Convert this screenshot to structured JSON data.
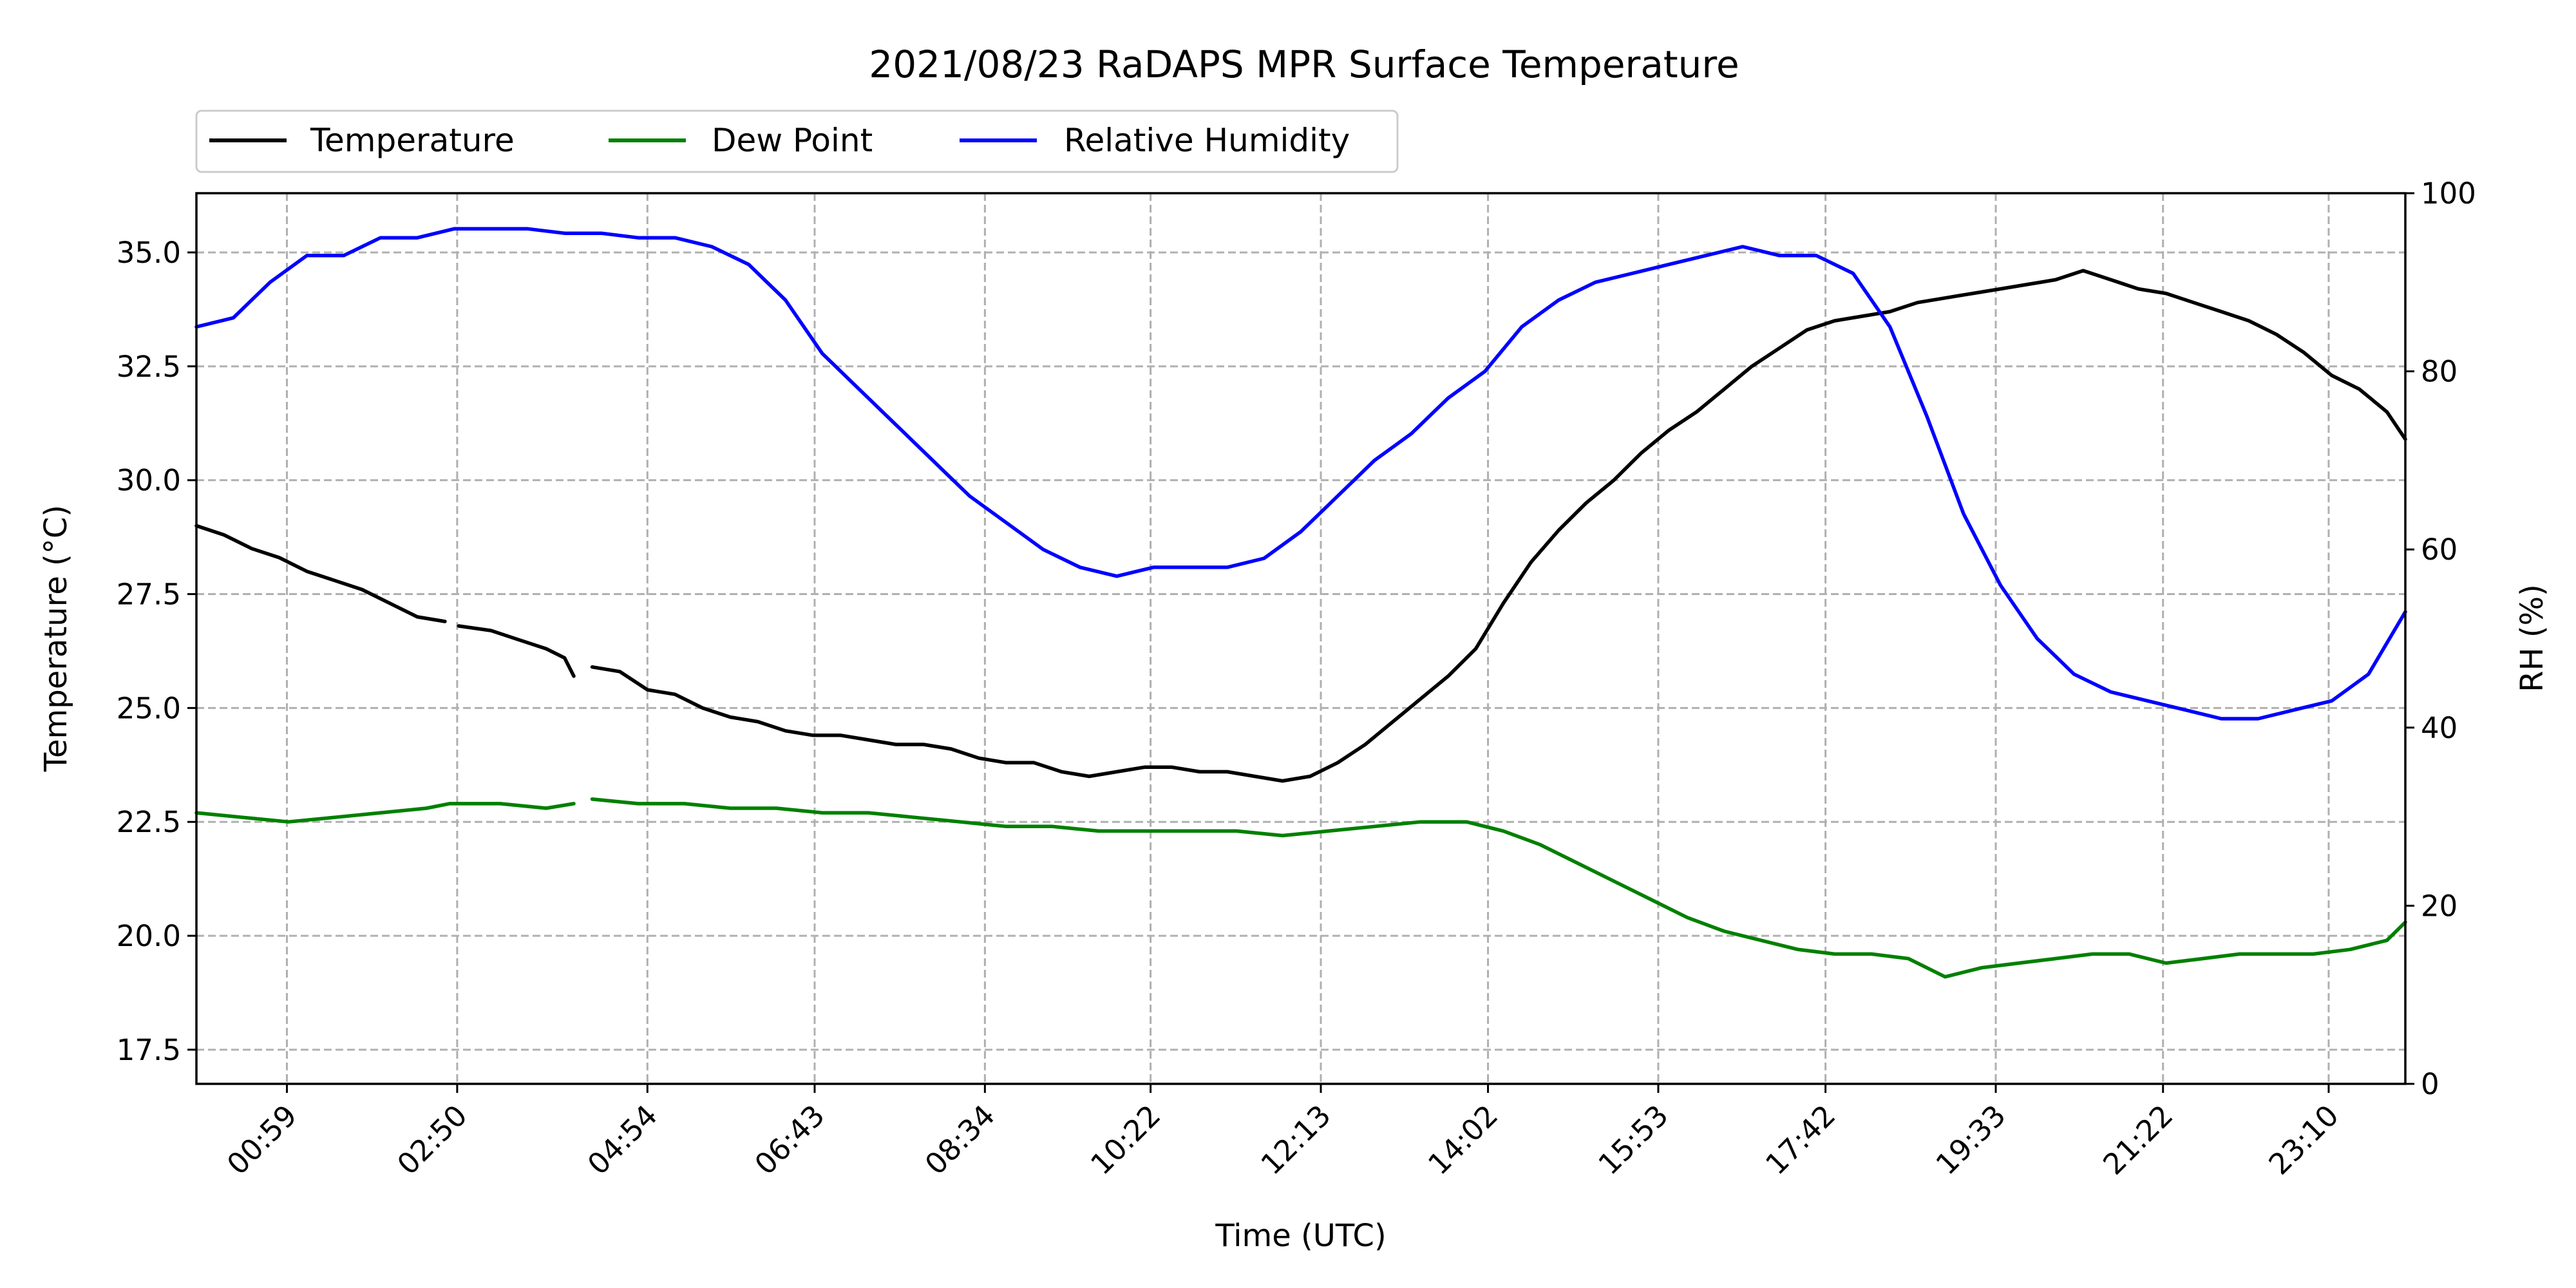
{
  "chart_data": {
    "type": "line",
    "title": "2021/08/23 RaDAPS MPR Surface Temperature",
    "xlabel": "Time (UTC)",
    "ylabel_left": "Temperature ($^\\circ$C)",
    "ylabel_left_display": "Temperature (°C)",
    "ylabel_right": "RH (%)",
    "xlim_hours": [
      0,
      24
    ],
    "x_ticks": [
      {
        "label": "00:59",
        "hour": 0.983
      },
      {
        "label": "02:50",
        "hour": 2.833
      },
      {
        "label": "04:54",
        "hour": 4.9
      },
      {
        "label": "06:43",
        "hour": 6.717
      },
      {
        "label": "08:34",
        "hour": 8.567
      },
      {
        "label": "10:22",
        "hour": 10.367
      },
      {
        "label": "12:13",
        "hour": 12.217
      },
      {
        "label": "14:02",
        "hour": 14.033
      },
      {
        "label": "15:53",
        "hour": 15.883
      },
      {
        "label": "17:42",
        "hour": 17.7
      },
      {
        "label": "19:33",
        "hour": 19.55
      },
      {
        "label": "21:22",
        "hour": 21.367
      },
      {
        "label": "23:10",
        "hour": 23.167
      }
    ],
    "ylim_left": [
      16.75,
      36.3
    ],
    "yticks_left": [
      "17.5",
      "20.0",
      "22.5",
      "25.0",
      "27.5",
      "30.0",
      "32.5",
      "35.0"
    ],
    "ylim_right": [
      0,
      100
    ],
    "yticks_right": [
      "0",
      "20",
      "40",
      "60",
      "80",
      "100"
    ],
    "grid": true,
    "legend_placement": "above-top-left",
    "series": [
      {
        "name": "Temperature",
        "axis": "left",
        "color": "#000000",
        "points": [
          [
            0,
            29
          ],
          [
            0.3,
            28.8
          ],
          [
            0.6,
            28.5
          ],
          [
            0.9,
            28.3
          ],
          [
            1.2,
            28
          ],
          [
            1.5,
            27.8
          ],
          [
            1.8,
            27.6
          ],
          [
            2.1,
            27.3
          ],
          [
            2.4,
            27
          ],
          [
            2.7,
            26.9
          ],
          [
            2.75,
            null
          ],
          [
            2.85,
            26.8
          ],
          [
            3.2,
            26.7
          ],
          [
            3.5,
            26.5
          ],
          [
            3.8,
            26.3
          ],
          [
            4.0,
            26.1
          ],
          [
            4.1,
            25.7
          ],
          [
            4.2,
            null
          ],
          [
            4.3,
            25.9
          ],
          [
            4.6,
            25.8
          ],
          [
            4.9,
            25.4
          ],
          [
            5.2,
            25.3
          ],
          [
            5.5,
            25
          ],
          [
            5.8,
            24.8
          ],
          [
            6.1,
            24.7
          ],
          [
            6.4,
            24.5
          ],
          [
            6.7,
            24.4
          ],
          [
            7.0,
            24.4
          ],
          [
            7.3,
            24.3
          ],
          [
            7.6,
            24.2
          ],
          [
            7.9,
            24.2
          ],
          [
            8.2,
            24.1
          ],
          [
            8.5,
            23.9
          ],
          [
            8.8,
            23.8
          ],
          [
            9.1,
            23.8
          ],
          [
            9.4,
            23.6
          ],
          [
            9.7,
            23.5
          ],
          [
            10.0,
            23.6
          ],
          [
            10.3,
            23.7
          ],
          [
            10.6,
            23.7
          ],
          [
            10.9,
            23.6
          ],
          [
            11.2,
            23.6
          ],
          [
            11.5,
            23.5
          ],
          [
            11.8,
            23.4
          ],
          [
            12.1,
            23.5
          ],
          [
            12.4,
            23.8
          ],
          [
            12.7,
            24.2
          ],
          [
            13.0,
            24.7
          ],
          [
            13.3,
            25.2
          ],
          [
            13.6,
            25.7
          ],
          [
            13.9,
            26.3
          ],
          [
            14.2,
            27.3
          ],
          [
            14.5,
            28.2
          ],
          [
            14.8,
            28.9
          ],
          [
            15.1,
            29.5
          ],
          [
            15.4,
            30
          ],
          [
            15.7,
            30.6
          ],
          [
            16.0,
            31.1
          ],
          [
            16.3,
            31.5
          ],
          [
            16.6,
            32
          ],
          [
            16.9,
            32.5
          ],
          [
            17.2,
            32.9
          ],
          [
            17.5,
            33.3
          ],
          [
            17.8,
            33.5
          ],
          [
            18.1,
            33.6
          ],
          [
            18.4,
            33.7
          ],
          [
            18.7,
            33.9
          ],
          [
            19.0,
            34
          ],
          [
            19.3,
            34.1
          ],
          [
            19.6,
            34.2
          ],
          [
            19.9,
            34.3
          ],
          [
            20.2,
            34.4
          ],
          [
            20.5,
            34.6
          ],
          [
            20.8,
            34.4
          ],
          [
            21.1,
            34.2
          ],
          [
            21.4,
            34.1
          ],
          [
            21.7,
            33.9
          ],
          [
            22.0,
            33.7
          ],
          [
            22.3,
            33.5
          ],
          [
            22.6,
            33.2
          ],
          [
            22.9,
            32.8
          ],
          [
            23.2,
            32.3
          ],
          [
            23.5,
            32
          ],
          [
            23.8,
            31.5
          ],
          [
            24.0,
            30.9
          ]
        ]
      },
      {
        "name": "Dew Point",
        "axis": "left",
        "color": "#008000",
        "points": [
          [
            0,
            22.7
          ],
          [
            0.5,
            22.6
          ],
          [
            1.0,
            22.5
          ],
          [
            1.5,
            22.6
          ],
          [
            2.0,
            22.7
          ],
          [
            2.5,
            22.8
          ],
          [
            2.75,
            22.9
          ],
          [
            2.85,
            22.9
          ],
          [
            3.3,
            22.9
          ],
          [
            3.8,
            22.8
          ],
          [
            4.1,
            22.9
          ],
          [
            4.2,
            null
          ],
          [
            4.3,
            23.0
          ],
          [
            4.8,
            22.9
          ],
          [
            5.3,
            22.9
          ],
          [
            5.8,
            22.8
          ],
          [
            6.3,
            22.8
          ],
          [
            6.8,
            22.7
          ],
          [
            7.3,
            22.7
          ],
          [
            7.8,
            22.6
          ],
          [
            8.3,
            22.5
          ],
          [
            8.8,
            22.4
          ],
          [
            9.3,
            22.4
          ],
          [
            9.8,
            22.3
          ],
          [
            10.3,
            22.3
          ],
          [
            10.8,
            22.3
          ],
          [
            11.3,
            22.3
          ],
          [
            11.8,
            22.2
          ],
          [
            12.3,
            22.3
          ],
          [
            12.8,
            22.4
          ],
          [
            13.3,
            22.5
          ],
          [
            13.8,
            22.5
          ],
          [
            14.2,
            22.3
          ],
          [
            14.6,
            22
          ],
          [
            15.0,
            21.6
          ],
          [
            15.4,
            21.2
          ],
          [
            15.8,
            20.8
          ],
          [
            16.2,
            20.4
          ],
          [
            16.6,
            20.1
          ],
          [
            17.0,
            19.9
          ],
          [
            17.4,
            19.7
          ],
          [
            17.8,
            19.6
          ],
          [
            18.2,
            19.6
          ],
          [
            18.6,
            19.5
          ],
          [
            19.0,
            19.1
          ],
          [
            19.4,
            19.3
          ],
          [
            19.8,
            19.4
          ],
          [
            20.2,
            19.5
          ],
          [
            20.6,
            19.6
          ],
          [
            21.0,
            19.6
          ],
          [
            21.4,
            19.4
          ],
          [
            21.8,
            19.5
          ],
          [
            22.2,
            19.6
          ],
          [
            22.6,
            19.6
          ],
          [
            23.0,
            19.6
          ],
          [
            23.4,
            19.7
          ],
          [
            23.8,
            19.9
          ],
          [
            24.0,
            20.3
          ]
        ]
      },
      {
        "name": "Relative Humidity",
        "axis": "right",
        "color": "#0000ff",
        "points": [
          [
            0,
            85
          ],
          [
            0.4,
            86
          ],
          [
            0.8,
            90
          ],
          [
            1.2,
            93
          ],
          [
            1.6,
            93
          ],
          [
            2.0,
            95
          ],
          [
            2.4,
            95
          ],
          [
            2.8,
            96
          ],
          [
            3.2,
            96
          ],
          [
            3.6,
            96
          ],
          [
            4.0,
            95.5
          ],
          [
            4.4,
            95.5
          ],
          [
            4.8,
            95
          ],
          [
            5.2,
            95
          ],
          [
            5.6,
            94
          ],
          [
            6.0,
            92
          ],
          [
            6.4,
            88
          ],
          [
            6.8,
            82
          ],
          [
            7.2,
            78
          ],
          [
            7.6,
            74
          ],
          [
            8.0,
            70
          ],
          [
            8.4,
            66
          ],
          [
            8.8,
            63
          ],
          [
            9.2,
            60
          ],
          [
            9.6,
            58
          ],
          [
            10.0,
            57
          ],
          [
            10.4,
            58
          ],
          [
            10.8,
            58
          ],
          [
            11.2,
            58
          ],
          [
            11.6,
            59
          ],
          [
            12.0,
            62
          ],
          [
            12.4,
            66
          ],
          [
            12.8,
            70
          ],
          [
            13.2,
            73
          ],
          [
            13.6,
            77
          ],
          [
            14.0,
            80
          ],
          [
            14.4,
            85
          ],
          [
            14.8,
            88
          ],
          [
            15.2,
            90
          ],
          [
            15.6,
            91
          ],
          [
            16.0,
            92
          ],
          [
            16.4,
            93
          ],
          [
            16.8,
            94
          ],
          [
            17.2,
            93
          ],
          [
            17.6,
            93
          ],
          [
            18.0,
            91
          ],
          [
            18.4,
            85
          ],
          [
            18.8,
            75
          ],
          [
            19.2,
            64
          ],
          [
            19.6,
            56
          ],
          [
            20.0,
            50
          ],
          [
            20.4,
            46
          ],
          [
            20.8,
            44
          ],
          [
            21.2,
            43
          ],
          [
            21.6,
            42
          ],
          [
            22.0,
            41
          ],
          [
            22.4,
            41
          ],
          [
            22.8,
            42
          ],
          [
            23.2,
            43
          ],
          [
            23.6,
            46
          ],
          [
            24.0,
            53
          ]
        ]
      }
    ]
  }
}
